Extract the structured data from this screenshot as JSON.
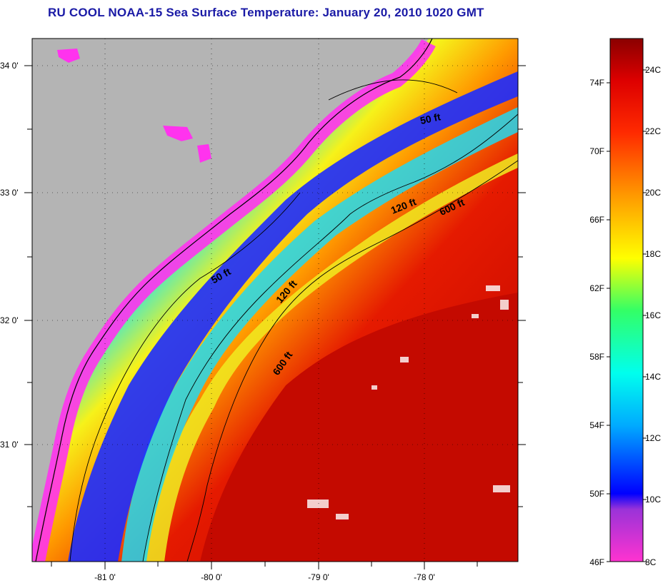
{
  "title": "RU COOL  NOAA-15  Sea Surface Temperature:  January 20, 2010 1020 GMT",
  "map": {
    "lat_labels": [
      "34 0'",
      "33 0'",
      "32 0'",
      "31 0'"
    ],
    "lon_labels": [
      "-81 0'",
      "-80 0'",
      "-79 0'",
      "-78 0'"
    ],
    "contour_labels": [
      "50 ft",
      "120 ft",
      "600 ft",
      "50 ft",
      "120 ft",
      "600 ft"
    ],
    "colors": {
      "land": "#b4b4b4",
      "coastline": "#000000",
      "grid": "#000000"
    }
  },
  "colorbar": {
    "fahrenheit_labels": [
      "74F",
      "70F",
      "66F",
      "62F",
      "58F",
      "54F",
      "50F",
      "46F"
    ],
    "celsius_labels": [
      "24C",
      "22C",
      "20C",
      "18C",
      "16C",
      "14C",
      "12C",
      "10C",
      "8C"
    ],
    "range_f": [
      46,
      77
    ],
    "range_c": [
      8,
      25
    ]
  }
}
